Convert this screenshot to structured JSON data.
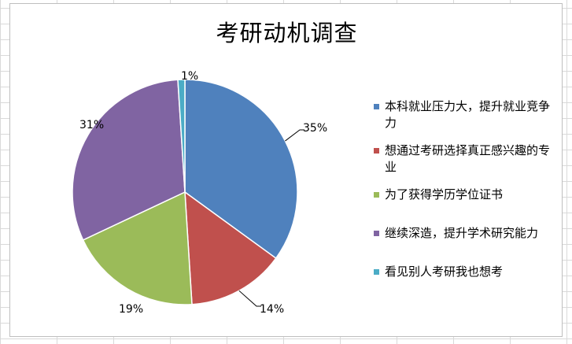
{
  "chart_data": {
    "type": "pie",
    "title": "考研动机调查",
    "categories": [
      "本科就业压力大，提升就业竞争力",
      "想通过考研选择真正感兴趣的专业",
      "为了获得学历学位证书",
      "继续深造，提升学术研究能力",
      "看见别人考研我也想考"
    ],
    "values": [
      35,
      14,
      19,
      31,
      1
    ],
    "data_labels": [
      "35%",
      "14%",
      "19%",
      "31%",
      "1%"
    ],
    "colors": [
      "#4f81bd",
      "#c0504d",
      "#9bbb59",
      "#8064a2",
      "#4bacc6"
    ],
    "legend_position": "right"
  }
}
